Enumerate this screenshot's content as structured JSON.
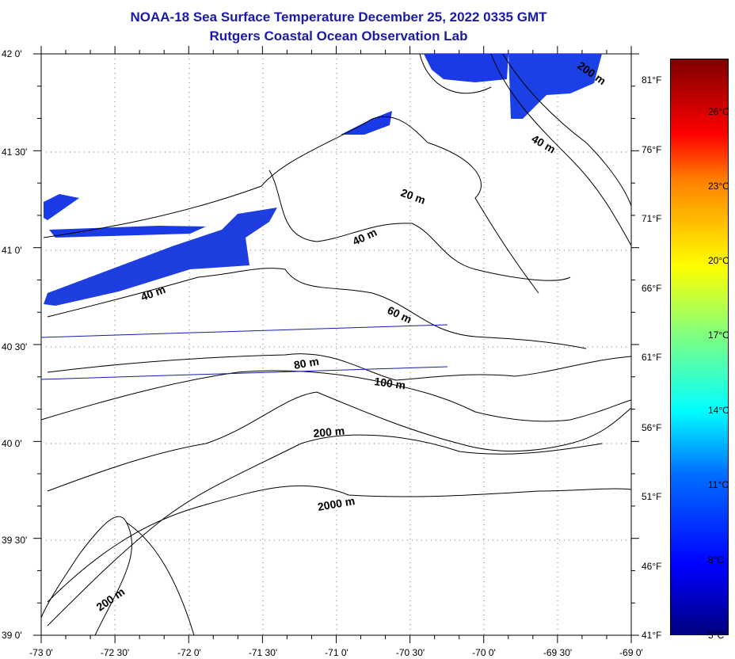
{
  "title": "NOAA-18 Sea Surface Temperature December 25, 2022 0335 GMT",
  "subtitle": "Rutgers Coastal Ocean Observation Lab",
  "latitude_labels": [
    "42 0'",
    "41 30'",
    "41 0'",
    "40 30'",
    "40 0'",
    "39 30'",
    "39 0'"
  ],
  "longitude_labels": [
    "-73 0'",
    "-72 30'",
    "-72 0'",
    "-71 30'",
    "-71 0'",
    "-70 30'",
    "-70 0'",
    "-69 30'",
    "-69 0'"
  ],
  "colorbar": {
    "fahrenheit_labels": [
      "81°F",
      "76°F",
      "71°F",
      "66°F",
      "61°F",
      "56°F",
      "51°F",
      "46°F",
      "41°F"
    ],
    "celsius_labels": [
      "26°C",
      "23°C",
      "20°C",
      "17°C",
      "14°C",
      "11°C",
      "8°C",
      "5°C"
    ],
    "range_celsius": [
      5,
      28
    ]
  },
  "contour_labels": [
    "200 m",
    "40 m",
    "20 m",
    "40 m",
    "40 m",
    "60 m",
    "80 m",
    "100 m",
    "200 m",
    "2000 m",
    "200 m"
  ],
  "colors": {
    "title": "#1a1aa8",
    "sst_patch": "#1a3ae6",
    "sst_patch_dark": "#0a1ec8",
    "transect": "#1a1aa8"
  }
}
